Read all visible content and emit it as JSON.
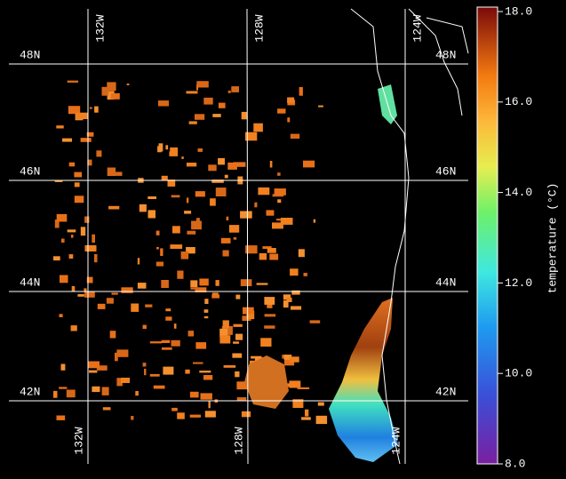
{
  "map": {
    "lat_labels": [
      "48N",
      "46N",
      "44N",
      "42N"
    ],
    "lon_labels": [
      "132W",
      "128W",
      "124W"
    ]
  },
  "colorbar": {
    "label": "temperature (°C)",
    "range": [
      8,
      18
    ],
    "ticks": [
      {
        "value": 8,
        "label": "8.0"
      },
      {
        "value": 10,
        "label": "10.0"
      },
      {
        "value": 12,
        "label": "12.0"
      },
      {
        "value": 14,
        "label": "14.0"
      },
      {
        "value": 16,
        "label": "16.0"
      },
      {
        "value": 18,
        "label": "18.0"
      }
    ]
  }
}
